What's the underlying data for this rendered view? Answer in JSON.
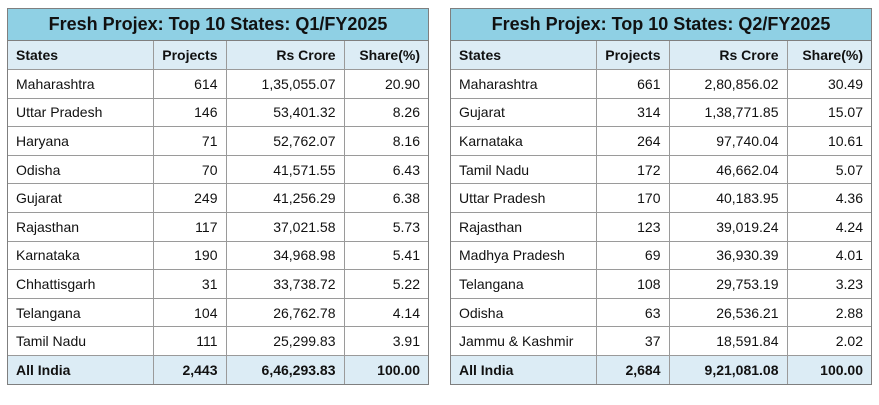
{
  "tables": [
    {
      "title": "Fresh Projex: Top 10 States: Q1/FY2025",
      "headers": [
        "States",
        "Projects",
        "Rs Crore",
        "Share(%)"
      ],
      "rows": [
        [
          "Maharashtra",
          "614",
          "1,35,055.07",
          "20.90"
        ],
        [
          "Uttar Pradesh",
          "146",
          "53,401.32",
          "8.26"
        ],
        [
          "Haryana",
          "71",
          "52,762.07",
          "8.16"
        ],
        [
          "Odisha",
          "70",
          "41,571.55",
          "6.43"
        ],
        [
          "Gujarat",
          "249",
          "41,256.29",
          "6.38"
        ],
        [
          "Rajasthan",
          "117",
          "37,021.58",
          "5.73"
        ],
        [
          "Karnataka",
          "190",
          "34,968.98",
          "5.41"
        ],
        [
          "Chhattisgarh",
          "31",
          "33,738.72",
          "5.22"
        ],
        [
          "Telangana",
          "104",
          "26,762.78",
          "4.14"
        ],
        [
          "Tamil Nadu",
          "111",
          "25,299.83",
          "3.91"
        ]
      ],
      "total": [
        "All India",
        "2,443",
        "6,46,293.83",
        "100.00"
      ]
    },
    {
      "title": "Fresh Projex: Top 10 States: Q2/FY2025",
      "headers": [
        "States",
        "Projects",
        "Rs Crore",
        "Share(%)"
      ],
      "rows": [
        [
          "Maharashtra",
          "661",
          "2,80,856.02",
          "30.49"
        ],
        [
          "Gujarat",
          "314",
          "1,38,771.85",
          "15.07"
        ],
        [
          "Karnataka",
          "264",
          "97,740.04",
          "10.61"
        ],
        [
          "Tamil Nadu",
          "172",
          "46,662.04",
          "5.07"
        ],
        [
          "Uttar Pradesh",
          "170",
          "40,183.95",
          "4.36"
        ],
        [
          "Rajasthan",
          "123",
          "39,019.24",
          "4.24"
        ],
        [
          "Madhya Pradesh",
          "69",
          "36,930.39",
          "4.01"
        ],
        [
          "Telangana",
          "108",
          "29,753.19",
          "3.23"
        ],
        [
          "Odisha",
          "63",
          "26,536.21",
          "2.88"
        ],
        [
          "Jammu & Kashmir",
          "37",
          "18,591.84",
          "2.02"
        ]
      ],
      "total": [
        "All India",
        "2,684",
        "9,21,081.08",
        "100.00"
      ]
    }
  ]
}
